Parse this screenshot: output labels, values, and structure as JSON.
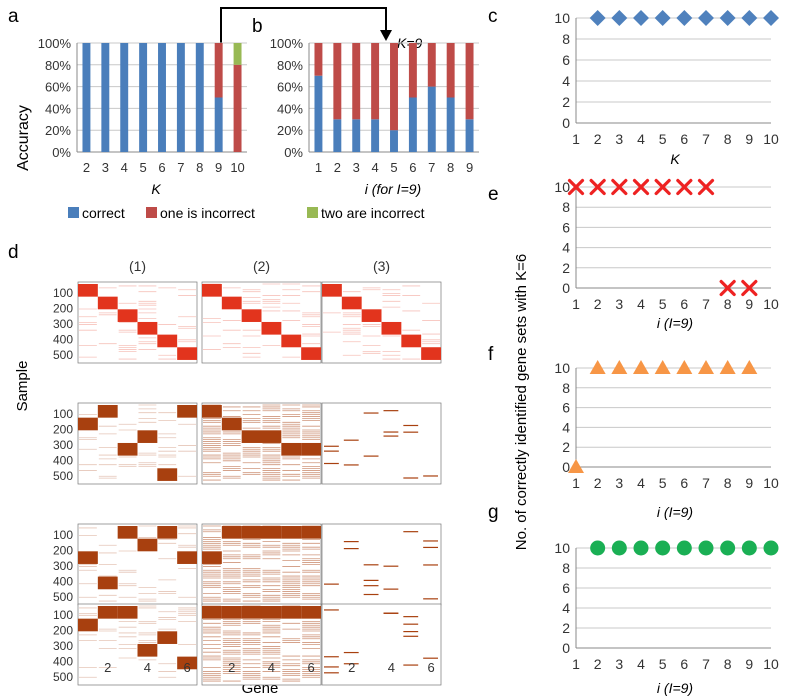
{
  "colors": {
    "correct": "#4A7EBB",
    "one_incorrect": "#BE4B48",
    "two_incorrect": "#98B954",
    "heat_red": "#E2341D",
    "heat_brown": "#A8400F",
    "e_marker": "#EE2222",
    "f_marker": "#F79646",
    "g_marker": "#1AAF54",
    "c_marker": "#4F81BD"
  },
  "panel_labels": [
    "a",
    "b",
    "c",
    "d",
    "e",
    "f",
    "g"
  ],
  "shared": {
    "ylabel_right": "No. of correctly identified gene sets with K=6",
    "legend": [
      "correct",
      "one is incorrect",
      "two are incorrect"
    ]
  },
  "chart_data": [
    {
      "id": "a",
      "type": "bar",
      "stacked": true,
      "title": "",
      "xlabel": "K",
      "ylabel": "Accuracy",
      "categories": [
        "2",
        "3",
        "4",
        "5",
        "6",
        "7",
        "8",
        "9",
        "10"
      ],
      "series": [
        {
          "name": "correct",
          "values": [
            100,
            100,
            100,
            100,
            100,
            100,
            100,
            50,
            0
          ]
        },
        {
          "name": "one is incorrect",
          "values": [
            0,
            0,
            0,
            0,
            0,
            0,
            0,
            50,
            80
          ]
        },
        {
          "name": "two are incorrect",
          "values": [
            0,
            0,
            0,
            0,
            0,
            0,
            0,
            0,
            20
          ]
        }
      ],
      "yticks": [
        "0%",
        "20%",
        "40%",
        "60%",
        "80%",
        "100%"
      ],
      "ylim": [
        0,
        100
      ]
    },
    {
      "id": "b",
      "type": "bar",
      "stacked": true,
      "title": "",
      "xlabel": "i (for I=9)",
      "ylabel": "",
      "annotation": "K=9",
      "categories": [
        "1",
        "2",
        "3",
        "4",
        "5",
        "6",
        "7",
        "8",
        "9"
      ],
      "series": [
        {
          "name": "correct",
          "values": [
            70,
            30,
            30,
            30,
            20,
            50,
            60,
            50,
            30
          ]
        },
        {
          "name": "one is incorrect",
          "values": [
            30,
            70,
            70,
            70,
            80,
            50,
            40,
            50,
            70
          ]
        },
        {
          "name": "two are incorrect",
          "values": [
            0,
            0,
            0,
            0,
            0,
            0,
            0,
            0,
            0
          ]
        }
      ],
      "yticks": [
        "0%",
        "20%",
        "40%",
        "60%",
        "80%",
        "100%"
      ],
      "ylim": [
        0,
        100
      ]
    },
    {
      "id": "c",
      "type": "scatter",
      "marker": "diamond",
      "xlabel": "K",
      "xlim": [
        1,
        10
      ],
      "ylim": [
        0,
        10
      ],
      "x": [
        2,
        3,
        4,
        5,
        6,
        7,
        8,
        9,
        10
      ],
      "y": [
        10,
        10,
        10,
        10,
        10,
        10,
        10,
        10,
        10
      ],
      "xticks": [
        "1",
        "2",
        "3",
        "4",
        "5",
        "6",
        "7",
        "8",
        "9",
        "10"
      ],
      "yticks": [
        "0",
        "2",
        "4",
        "6",
        "8",
        "10"
      ]
    },
    {
      "id": "e",
      "type": "scatter",
      "marker": "x",
      "xlabel": "i (I=9)",
      "xlim": [
        1,
        10
      ],
      "ylim": [
        0,
        10
      ],
      "x": [
        1,
        2,
        3,
        4,
        5,
        6,
        7,
        8,
        9
      ],
      "y": [
        10,
        10,
        10,
        10,
        10,
        10,
        10,
        0,
        0
      ],
      "xticks": [
        "1",
        "2",
        "3",
        "4",
        "5",
        "6",
        "7",
        "8",
        "9",
        "10"
      ],
      "yticks": [
        "0",
        "2",
        "4",
        "6",
        "8",
        "10"
      ]
    },
    {
      "id": "f",
      "type": "scatter",
      "marker": "triangle",
      "xlabel": "i (I=9)",
      "xlim": [
        1,
        10
      ],
      "ylim": [
        0,
        10
      ],
      "x": [
        1,
        2,
        3,
        4,
        5,
        6,
        7,
        8,
        9
      ],
      "y": [
        0,
        10,
        10,
        10,
        10,
        10,
        10,
        10,
        10
      ],
      "xticks": [
        "1",
        "2",
        "3",
        "4",
        "5",
        "6",
        "7",
        "8",
        "9",
        "10"
      ],
      "yticks": [
        "0",
        "2",
        "4",
        "6",
        "8",
        "10"
      ]
    },
    {
      "id": "g",
      "type": "scatter",
      "marker": "circle",
      "xlabel": "i (I=9)",
      "xlim": [
        1,
        10
      ],
      "ylim": [
        0,
        10
      ],
      "x": [
        2,
        3,
        4,
        5,
        6,
        7,
        8,
        9,
        10
      ],
      "y": [
        10,
        10,
        10,
        10,
        10,
        10,
        10,
        10,
        10
      ],
      "xticks": [
        "1",
        "2",
        "3",
        "4",
        "5",
        "6",
        "7",
        "8",
        "9",
        "10"
      ],
      "yticks": [
        "0",
        "2",
        "4",
        "6",
        "8",
        "10"
      ]
    },
    {
      "id": "d",
      "type": "heatmap",
      "xlabel": "Gene",
      "ylabel": "Sample",
      "columns": [
        "(1)",
        "(2)",
        "(3)"
      ],
      "yticks": [
        "100",
        "200",
        "300",
        "400",
        "500"
      ],
      "xticks": [
        "2",
        "4",
        "6"
      ],
      "rows": [
        {
          "color": "red",
          "blocks": [
            [
              [
                1,
                1
              ],
              [
                2,
                2
              ],
              [
                3,
                3
              ],
              [
                4,
                4
              ],
              [
                5,
                5
              ],
              [
                6,
                6
              ]
            ],
            [
              [
                1,
                1
              ],
              [
                2,
                2
              ],
              [
                3,
                3
              ],
              [
                4,
                4
              ],
              [
                5,
                5
              ],
              [
                6,
                6
              ]
            ],
            [
              [
                1,
                1
              ],
              [
                2,
                2
              ],
              [
                3,
                3
              ],
              [
                4,
                4
              ],
              [
                5,
                5
              ],
              [
                6,
                6
              ]
            ]
          ],
          "noise": [
            "light",
            "light",
            "light"
          ]
        },
        {
          "color": "brown",
          "blocks": [
            [
              [
                1,
                2
              ],
              [
                2,
                1
              ],
              [
                3,
                4
              ],
              [
                4,
                3
              ],
              [
                5,
                6
              ],
              [
                6,
                1
              ]
            ],
            [
              [
                1,
                1
              ],
              [
                2,
                2
              ],
              [
                3,
                3
              ],
              [
                4,
                3
              ],
              [
                5,
                4
              ],
              [
                6,
                4
              ]
            ],
            []
          ],
          "noise": [
            "light",
            "heavy",
            "sparse"
          ]
        },
        {
          "color": "brown",
          "blocks": [
            [
              [
                1,
                3
              ],
              [
                2,
                5
              ],
              [
                3,
                1
              ],
              [
                4,
                2
              ],
              [
                5,
                1
              ],
              [
                6,
                3
              ]
            ],
            [
              [
                1,
                3
              ],
              [
                2,
                1
              ],
              [
                3,
                1
              ],
              [
                4,
                1
              ],
              [
                5,
                1
              ],
              [
                6,
                1
              ]
            ],
            []
          ],
          "noise": [
            "light",
            "heavy",
            "sparse"
          ]
        },
        {
          "color": "brown",
          "blocks": [
            [
              [
                1,
                2
              ],
              [
                2,
                1
              ],
              [
                3,
                1
              ],
              [
                4,
                4
              ],
              [
                5,
                3
              ],
              [
                6,
                5
              ]
            ],
            [
              [
                1,
                1
              ],
              [
                2,
                1
              ],
              [
                3,
                1
              ],
              [
                4,
                1
              ],
              [
                5,
                1
              ],
              [
                6,
                1
              ]
            ],
            []
          ],
          "noise": [
            "light",
            "heavy",
            "sparse"
          ]
        }
      ]
    }
  ]
}
